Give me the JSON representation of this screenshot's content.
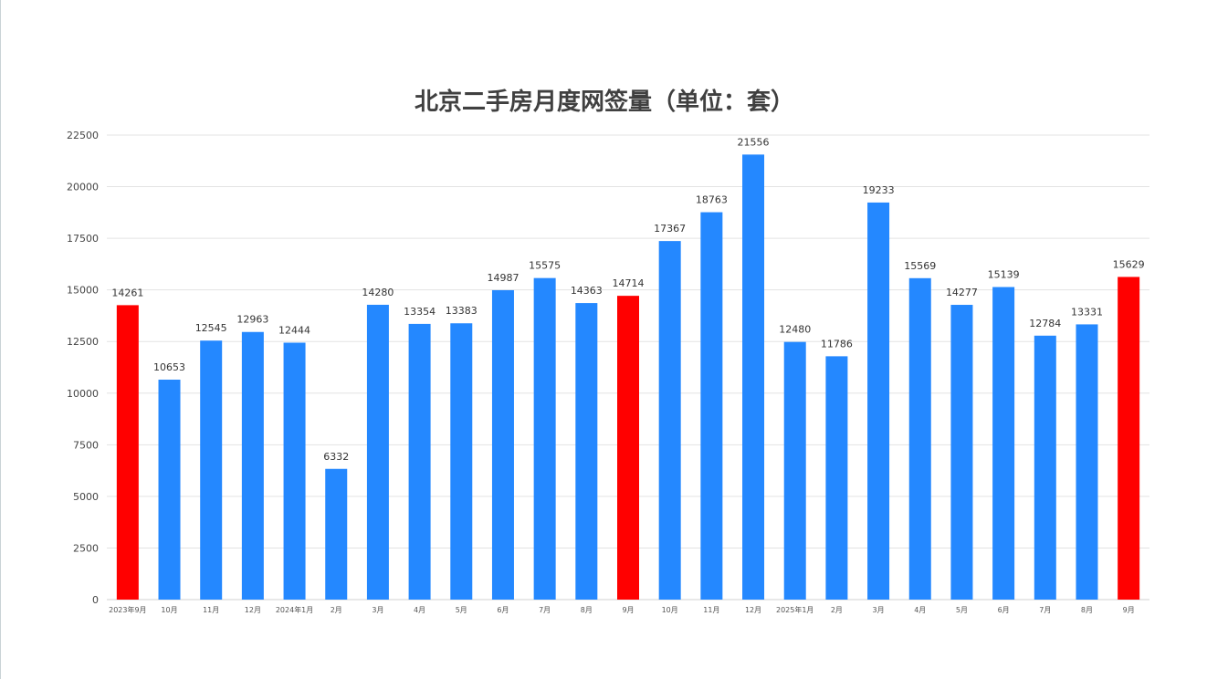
{
  "chart_data": {
    "type": "bar",
    "title": "北京二手房月度网签量（单位：套）",
    "xlabel": "",
    "ylabel": "",
    "ylim": [
      0,
      22500
    ],
    "yticks": [
      0,
      2500,
      5000,
      7500,
      10000,
      12500,
      15000,
      17500,
      20000,
      22500
    ],
    "grid": true,
    "legend": "none",
    "categories": [
      "2023年9月",
      "10月",
      "11月",
      "12月",
      "2024年1月",
      "2月",
      "3月",
      "4月",
      "5月",
      "6月",
      "7月",
      "8月",
      "9月",
      "10月",
      "11月",
      "12月",
      "2025年1月",
      "2月",
      "3月",
      "4月",
      "5月",
      "6月",
      "7月",
      "8月",
      "9月"
    ],
    "values": [
      14261,
      10653,
      12545,
      12963,
      12444,
      6332,
      14280,
      13354,
      13383,
      14987,
      15575,
      14363,
      14714,
      17367,
      18763,
      21556,
      12480,
      11786,
      19233,
      15569,
      14277,
      15139,
      12784,
      13331,
      15629
    ],
    "highlight_indices": [
      0,
      12,
      24
    ],
    "colors": {
      "default": "#2488ff",
      "highlight": "#ff0000",
      "grid": "#e3e3e3",
      "title": "#404040"
    }
  }
}
